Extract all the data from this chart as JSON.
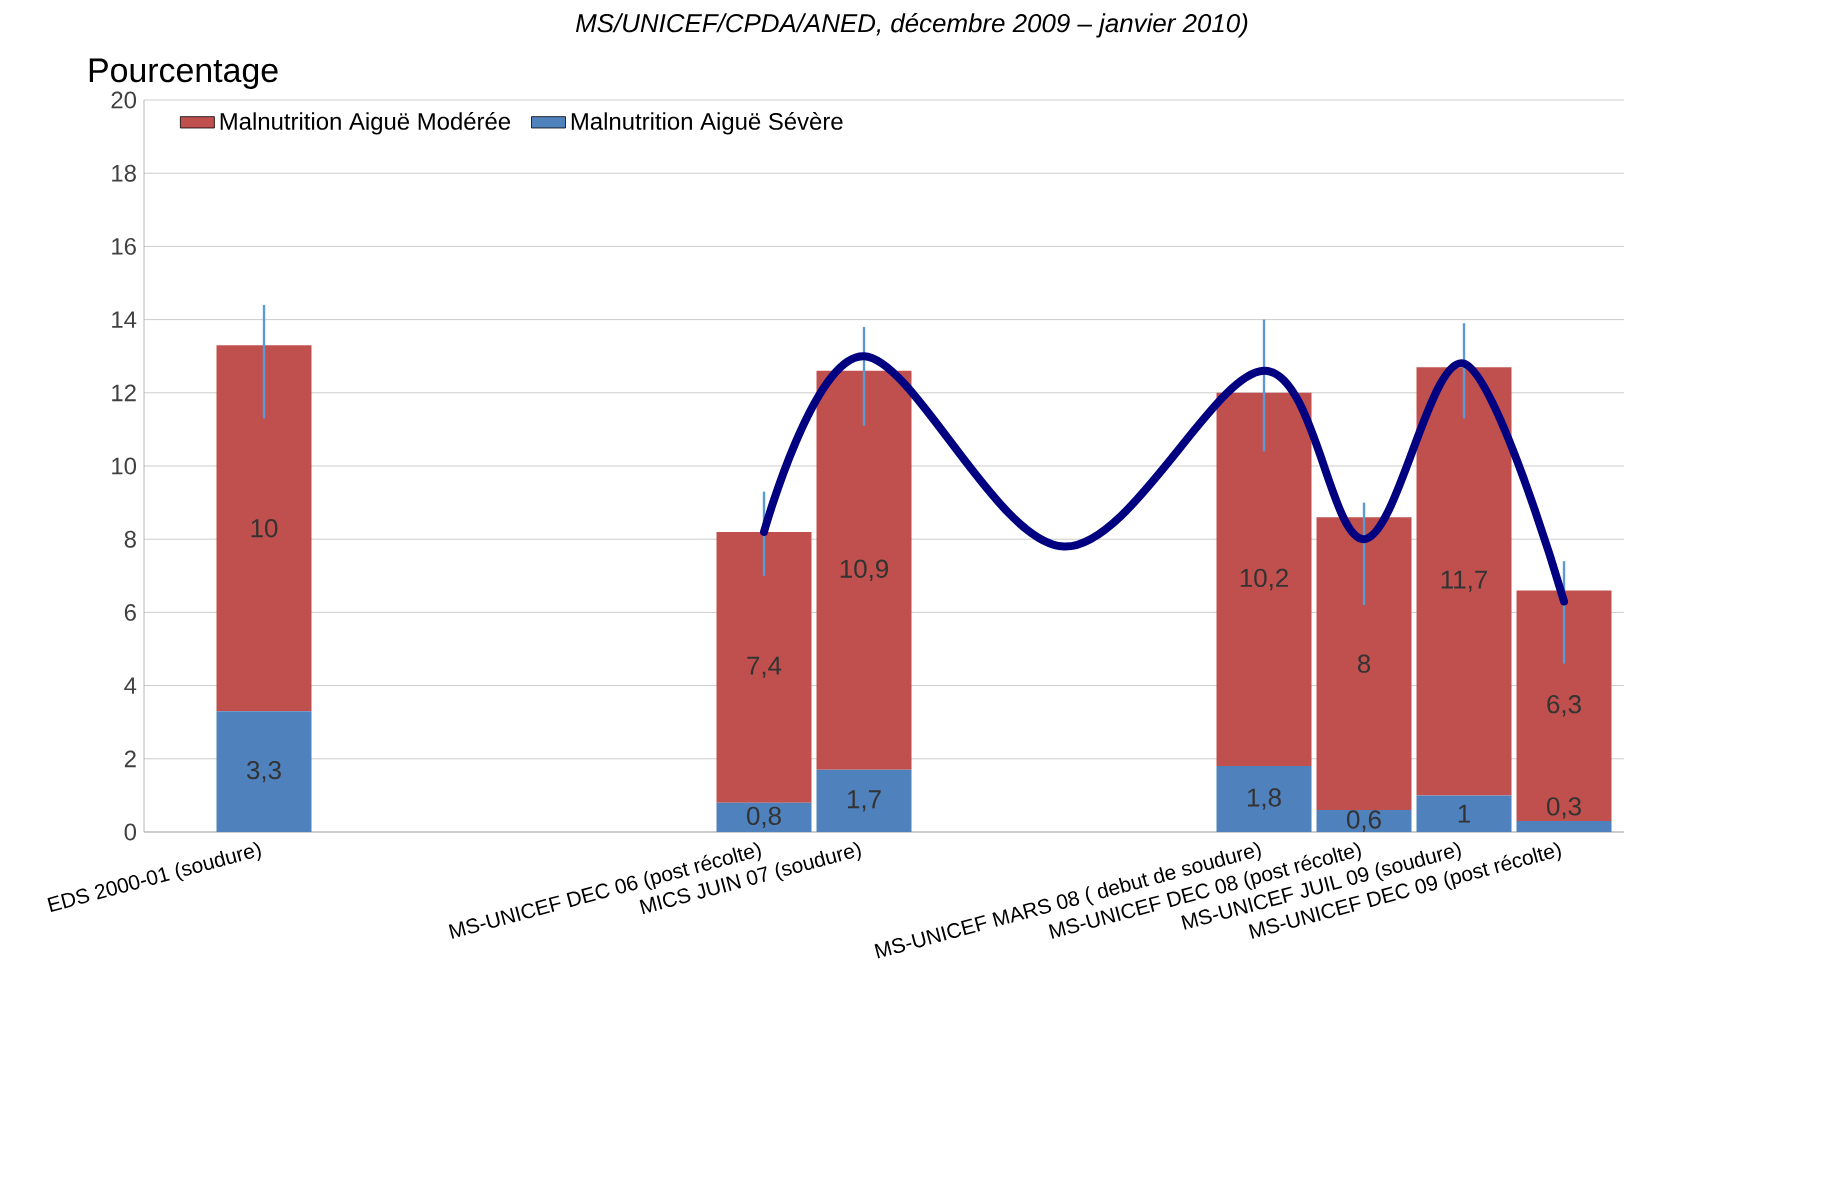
{
  "chart_data": {
    "type": "bar",
    "stacked": true,
    "subtitle": "MS/UNICEF/CPDA/ANED, décembre 2009 – janvier 2010)",
    "ylabel": "Pourcentage",
    "categories": [
      "EDS 2000-01  (soudure)",
      null,
      null,
      null,
      null,
      "MS-UNICEF DEC 06 (post récolte)",
      "MICS JUIN 07 (soudure)",
      null,
      null,
      null,
      "MS-UNICEF MARS 08 ( debut de soudure)",
      "MS-UNICEF DEC 08 (post récolte)",
      "MS-UNICEF JUIL 09 (soudure)",
      "MS-UNICEF DEC 09 (post récolte)"
    ],
    "series": [
      {
        "name": "Malnutrition Aiguë Sévère",
        "color": "#4f81bd",
        "values": [
          3.3,
          null,
          null,
          null,
          null,
          0.8,
          1.7,
          null,
          null,
          null,
          1.8,
          0.6,
          1,
          0.3
        ],
        "value_labels": [
          "3,3",
          null,
          null,
          null,
          null,
          "0,8",
          "1,7",
          null,
          null,
          null,
          "1,8",
          "0,6",
          "1",
          "0,3"
        ]
      },
      {
        "name": "Malnutrition Aiguë Modérée",
        "color": "#c0504d",
        "values": [
          10,
          null,
          null,
          null,
          null,
          7.4,
          10.9,
          null,
          null,
          null,
          10.2,
          8,
          11.7,
          6.3
        ],
        "value_labels": [
          "10",
          null,
          null,
          null,
          null,
          "7,4",
          "10,9",
          null,
          null,
          null,
          "10,2",
          "8",
          "11,7",
          "6,3"
        ],
        "errors": [
          [
            11.3,
            14.4
          ],
          null,
          null,
          null,
          null,
          [
            7,
            9.3
          ],
          [
            11.1,
            13.8
          ],
          null,
          null,
          null,
          [
            10.4,
            14
          ],
          [
            6.2,
            9
          ],
          [
            11.3,
            13.9
          ],
          [
            4.6,
            7.4
          ]
        ]
      },
      {
        "type": "line",
        "color": "#000080",
        "values": [
          null,
          null,
          null,
          null,
          null,
          8.2,
          13,
          null,
          7.8,
          null,
          12.6,
          8,
          12.8,
          6.3
        ]
      }
    ],
    "ylim": [
      0,
      20
    ],
    "yticks": [
      0,
      2,
      4,
      6,
      8,
      10,
      12,
      14,
      16,
      18,
      20
    ],
    "grid": "y",
    "legend": "top left"
  }
}
